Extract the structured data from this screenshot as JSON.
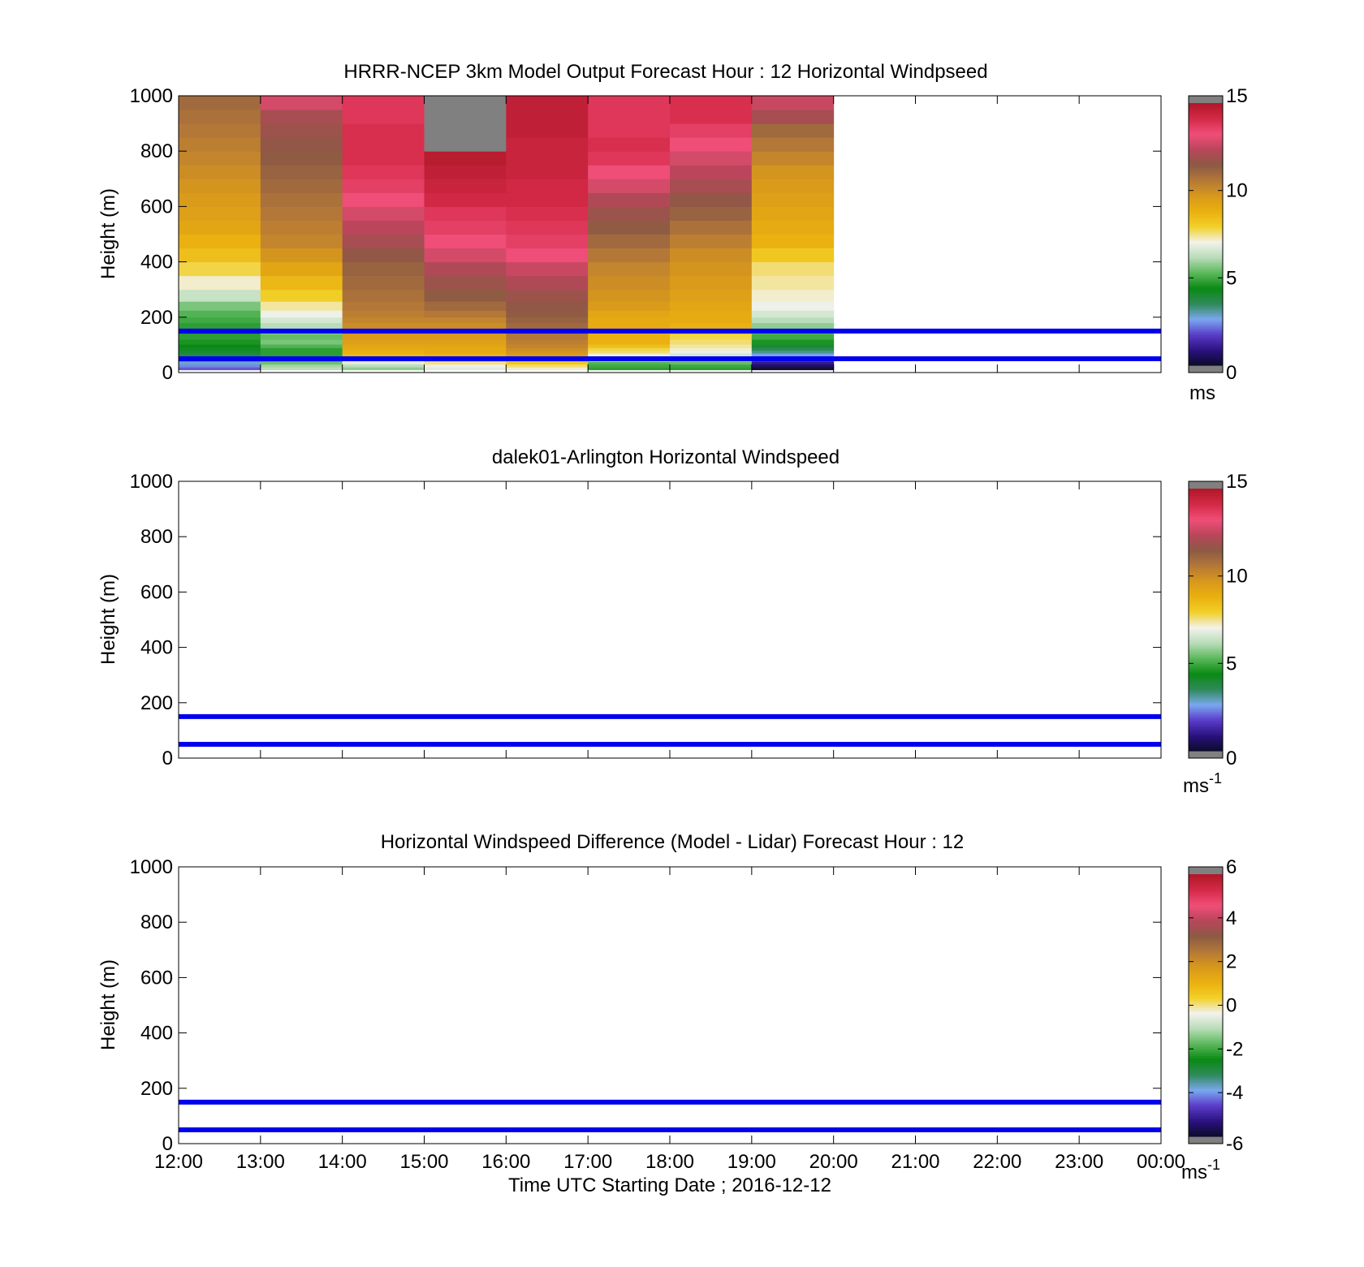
{
  "chart_data": [
    {
      "type": "heatmap",
      "title": "HRRR-NCEP 3km Model Output   Forecast Hour : 12 Horizontal Windpseed",
      "ylabel": "Height (m)",
      "ylim": [
        0,
        1000
      ],
      "yticks": [
        "0",
        "200",
        "400",
        "600",
        "800",
        "1000"
      ],
      "xticks": [
        "12:00",
        "13:00",
        "14:00",
        "15:00",
        "16:00",
        "17:00",
        "18:00",
        "19:00",
        "20:00",
        "21:00",
        "22:00",
        "23:00",
        "00:00"
      ],
      "colorbar": {
        "ticks": [
          "0",
          "5",
          "10",
          "15"
        ],
        "unit": "ms",
        "min": 0,
        "max": 15
      },
      "reference_lines_m": [
        50,
        150
      ],
      "heights_m": [
        15,
        25,
        35,
        45,
        55,
        65,
        75,
        85,
        95,
        110,
        130,
        150,
        170,
        190,
        210,
        240,
        275,
        325,
        375,
        425,
        475,
        525,
        575,
        625,
        675,
        725,
        775,
        825,
        875,
        925,
        975
      ],
      "times": [
        "12:00",
        "13:00",
        "14:00",
        "15:00",
        "16:00",
        "17:00",
        "18:00",
        "19:00"
      ],
      "values": [
        [
          2.0,
          2.4,
          2.8,
          3.2,
          3.5,
          3.8,
          4.0,
          4.2,
          4.4,
          4.6,
          4.8,
          4.6,
          4.8,
          5.0,
          5.2,
          5.6,
          6.4,
          7.2,
          7.8,
          8.4,
          8.8,
          9.2,
          9.4,
          9.6,
          9.8,
          10.0,
          10.2,
          10.4,
          10.6,
          10.8,
          11.0
        ],
        [
          6.2,
          6.0,
          5.5,
          5.0,
          4.8,
          4.8,
          4.8,
          4.8,
          5.2,
          5.6,
          5.4,
          5.8,
          6.2,
          6.6,
          7.0,
          7.4,
          8.0,
          8.6,
          9.2,
          9.8,
          10.2,
          10.4,
          10.6,
          10.8,
          11.0,
          11.2,
          11.4,
          11.6,
          11.8,
          12.0,
          12.8
        ],
        [
          5.8,
          6.2,
          6.8,
          7.5,
          8.0,
          8.6,
          8.8,
          9.0,
          9.2,
          9.4,
          9.6,
          9.8,
          10.0,
          10.2,
          10.4,
          10.6,
          10.8,
          11.0,
          11.2,
          11.6,
          12.0,
          12.4,
          12.8,
          13.2,
          13.6,
          13.8,
          14.0,
          14.0,
          14.0,
          13.8,
          13.8
        ],
        [
          6.8,
          7.0,
          7.5,
          8.2,
          8.6,
          8.8,
          9.0,
          9.0,
          9.2,
          9.4,
          9.6,
          9.8,
          10.0,
          10.2,
          10.6,
          11.0,
          11.4,
          11.8,
          12.2,
          12.8,
          13.2,
          13.6,
          13.8,
          14.2,
          14.4,
          14.6,
          14.8,
          15.2,
          15.2,
          15.2,
          15.2
        ],
        [
          7.2,
          7.6,
          8.2,
          8.8,
          9.2,
          9.6,
          9.8,
          10.0,
          10.2,
          10.4,
          10.6,
          10.8,
          11.0,
          11.2,
          11.4,
          11.6,
          11.8,
          12.2,
          12.6,
          13.2,
          13.6,
          13.8,
          14.0,
          14.2,
          14.2,
          14.4,
          14.4,
          14.4,
          14.6,
          14.6,
          14.6
        ],
        [
          4.8,
          5.0,
          5.2,
          6.2,
          6.8,
          7.2,
          7.6,
          7.8,
          8.4,
          8.8,
          8.8,
          8.8,
          9.0,
          9.0,
          9.2,
          9.6,
          9.8,
          10.0,
          10.2,
          10.6,
          11.0,
          11.4,
          11.8,
          12.2,
          12.8,
          13.2,
          13.8,
          14.0,
          13.8,
          13.8,
          13.8
        ],
        [
          4.8,
          5.0,
          5.4,
          5.8,
          6.2,
          6.6,
          7.0,
          7.2,
          7.4,
          7.6,
          7.8,
          8.6,
          8.8,
          9.0,
          9.0,
          9.2,
          9.4,
          9.6,
          9.8,
          10.0,
          10.4,
          10.8,
          11.2,
          11.6,
          12.0,
          12.4,
          12.8,
          13.2,
          13.6,
          14.0,
          14.0
        ],
        [
          0.2,
          0.6,
          1.0,
          1.6,
          2.2,
          2.6,
          3.2,
          3.6,
          4.0,
          4.6,
          5.0,
          5.4,
          5.8,
          6.2,
          6.6,
          7.0,
          7.2,
          7.4,
          7.6,
          8.2,
          8.8,
          9.0,
          9.2,
          9.4,
          9.6,
          9.8,
          10.2,
          10.6,
          11.0,
          12.0,
          12.6
        ]
      ]
    },
    {
      "type": "heatmap",
      "title": "dalek01-Arlington  Horizontal Windspeed",
      "ylabel": "Height (m)",
      "ylim": [
        0,
        1000
      ],
      "yticks": [
        "0",
        "200",
        "400",
        "600",
        "800",
        "1000"
      ],
      "xticks": [
        "12:00",
        "13:00",
        "14:00",
        "15:00",
        "16:00",
        "17:00",
        "18:00",
        "19:00",
        "20:00",
        "21:00",
        "22:00",
        "23:00",
        "00:00"
      ],
      "colorbar": {
        "ticks": [
          "0",
          "5",
          "10",
          "15"
        ],
        "unit": "ms",
        "unit_sup": "-1",
        "min": 0,
        "max": 15
      },
      "reference_lines_m": [
        50,
        150
      ],
      "values": []
    },
    {
      "type": "heatmap",
      "title": "Horizontal Windspeed Difference (Model - Lidar) Forecast Hour : 12",
      "ylabel": "Height (m)",
      "xlabel": "Time UTC  Starting Date ; 2016-12-12",
      "ylim": [
        0,
        1000
      ],
      "yticks": [
        "0",
        "200",
        "400",
        "600",
        "800",
        "1000"
      ],
      "xticks": [
        "12:00",
        "13:00",
        "14:00",
        "15:00",
        "16:00",
        "17:00",
        "18:00",
        "19:00",
        "20:00",
        "21:00",
        "22:00",
        "23:00",
        "00:00"
      ],
      "colorbar": {
        "ticks": [
          "-6",
          "-4",
          "-2",
          "0",
          "2",
          "4",
          "6"
        ],
        "unit": "ms",
        "unit_sup": "-1",
        "min": -6,
        "max": 6
      },
      "reference_lines_m": [
        50,
        150
      ],
      "values": []
    }
  ],
  "colors": {
    "reference_line": "#0000ee",
    "missing": "#808080",
    "colormap": [
      "#0b0b28",
      "#2a1280",
      "#5a3cc8",
      "#7aa8f0",
      "#2f8a5a",
      "#0a8a14",
      "#5ab85a",
      "#b8dcb8",
      "#f2f2ec",
      "#f2d028",
      "#eab010",
      "#d8981c",
      "#b47838",
      "#8c5a44",
      "#b8465a",
      "#f04e78",
      "#d42a48",
      "#b01828"
    ]
  }
}
